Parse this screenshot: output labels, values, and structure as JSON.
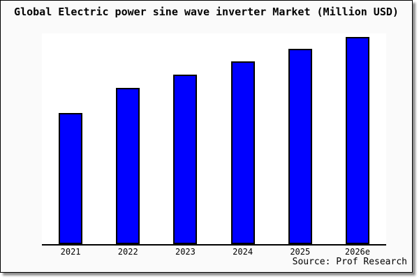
{
  "window": {
    "outer_background": "#ffffff",
    "card_background": "#fafafa",
    "plot_background": "#ffffff",
    "border_color": "#000000"
  },
  "footer": {
    "source": "Source: Prof Research"
  },
  "chart_data": {
    "type": "bar",
    "title": "Global Electric power sine wave inverter Market (Million USD)",
    "categories": [
      "2021",
      "2022",
      "2023",
      "2024",
      "2025",
      "2026e"
    ],
    "values": [
      63.2,
      75.6,
      81.9,
      88.3,
      94.3,
      100
    ],
    "values_note": "No y-axis scale shown in image; values are relative estimates from bar heights, indexed so 2026e = 100",
    "xlabel": "",
    "ylabel": "",
    "ylim": [
      0,
      101.7
    ],
    "grid": false,
    "legend": false,
    "bar_color": "#0000ff",
    "bar_border_color": "#000000",
    "axis_color": "#000000",
    "source": "Source: Prof Research"
  }
}
